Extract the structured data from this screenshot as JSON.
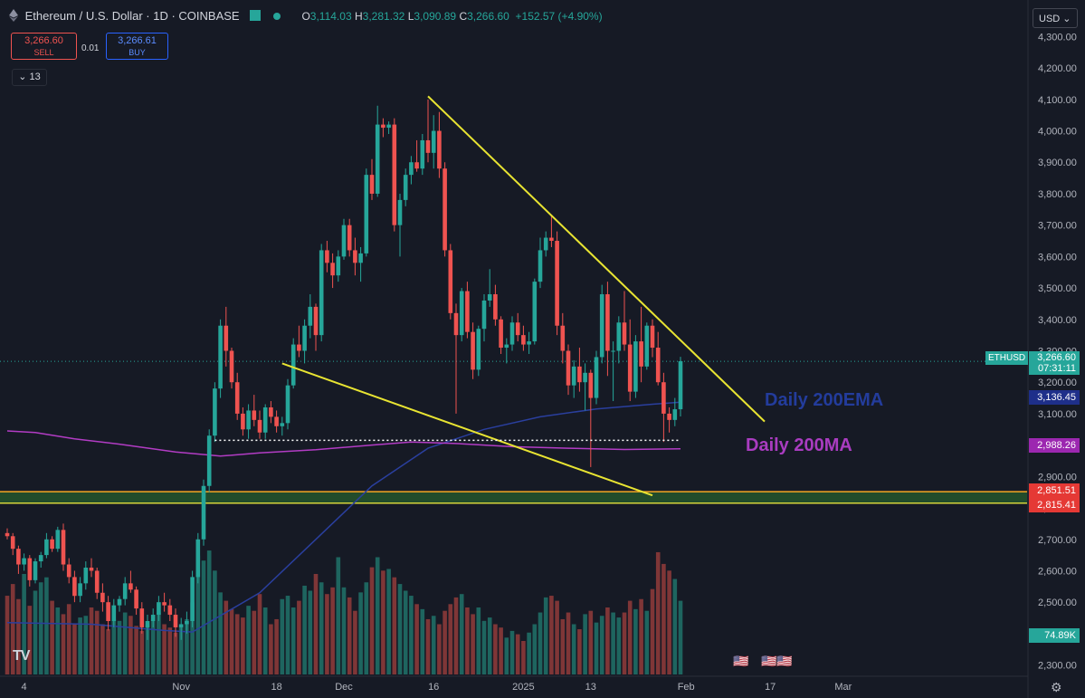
{
  "header": {
    "title": "Ethereum / U.S. Dollar · 1D · COINBASE",
    "open_label": "O",
    "open": "3,114.03",
    "high_label": "H",
    "high": "3,281.32",
    "low_label": "L",
    "low": "3,090.89",
    "close_label": "C",
    "close": "3,266.60",
    "change": "+152.57 (+4.90%)"
  },
  "trade": {
    "sell_price": "3,266.60",
    "sell_label": "SELL",
    "spread": "0.01",
    "buy_price": "3,266.61",
    "buy_label": "BUY"
  },
  "indicator_count": "13",
  "currency": "USD",
  "colors": {
    "up": "#26a69a",
    "down": "#ef5350",
    "ema": "#2a3f9e",
    "ma": "#b23cc4",
    "trend": "#e8e432",
    "support": "#f5a623",
    "support_fill": "#2e7d32"
  },
  "chart_data": {
    "type": "candlestick",
    "title": "Ethereum / U.S. Dollar · 1D · COINBASE",
    "ylim": [
      2270,
      4330
    ],
    "y_ticks": [
      2300,
      2400,
      2500,
      2600,
      2700,
      2800,
      2900,
      3000,
      3100,
      3200,
      3300,
      3400,
      3500,
      3600,
      3700,
      3800,
      3900,
      4000,
      4100,
      4200,
      4300
    ],
    "x_labels": [
      "4",
      "Nov",
      "18",
      "Dec",
      "16",
      "2025",
      "13",
      "Feb",
      "17",
      "Mar"
    ],
    "x_label_days": [
      3,
      31,
      48,
      60,
      76,
      92,
      104,
      121,
      136,
      149
    ],
    "candles": [
      [
        0,
        2720,
        2735,
        2700,
        2710
      ],
      [
        1,
        2710,
        2720,
        2650,
        2670
      ],
      [
        2,
        2670,
        2680,
        2590,
        2620
      ],
      [
        3,
        2620,
        2655,
        2600,
        2640
      ],
      [
        4,
        2640,
        2650,
        2550,
        2570
      ],
      [
        5,
        2570,
        2640,
        2560,
        2630
      ],
      [
        6,
        2630,
        2660,
        2610,
        2650
      ],
      [
        7,
        2650,
        2720,
        2640,
        2700
      ],
      [
        8,
        2700,
        2710,
        2660,
        2670
      ],
      [
        9,
        2670,
        2740,
        2660,
        2730
      ],
      [
        10,
        2730,
        2750,
        2600,
        2620
      ],
      [
        11,
        2620,
        2640,
        2560,
        2580
      ],
      [
        12,
        2580,
        2600,
        2500,
        2520
      ],
      [
        13,
        2520,
        2580,
        2500,
        2560
      ],
      [
        14,
        2560,
        2630,
        2540,
        2610
      ],
      [
        15,
        2610,
        2640,
        2580,
        2600
      ],
      [
        16,
        2600,
        2610,
        2510,
        2530
      ],
      [
        17,
        2530,
        2560,
        2470,
        2500
      ],
      [
        18,
        2500,
        2520,
        2410,
        2440
      ],
      [
        19,
        2440,
        2510,
        2420,
        2490
      ],
      [
        20,
        2490,
        2520,
        2470,
        2510
      ],
      [
        21,
        2510,
        2580,
        2490,
        2560
      ],
      [
        22,
        2560,
        2600,
        2530,
        2540
      ],
      [
        23,
        2540,
        2550,
        2460,
        2480
      ],
      [
        24,
        2480,
        2500,
        2400,
        2420
      ],
      [
        25,
        2420,
        2460,
        2380,
        2440
      ],
      [
        26,
        2440,
        2480,
        2420,
        2460
      ],
      [
        27,
        2460,
        2520,
        2440,
        2500
      ],
      [
        28,
        2500,
        2530,
        2470,
        2490
      ],
      [
        29,
        2490,
        2510,
        2440,
        2460
      ],
      [
        30,
        2460,
        2480,
        2390,
        2420
      ],
      [
        31,
        2420,
        2450,
        2380,
        2430
      ],
      [
        32,
        2430,
        2470,
        2400,
        2440
      ],
      [
        33,
        2440,
        2600,
        2420,
        2580
      ],
      [
        34,
        2580,
        2720,
        2560,
        2700
      ],
      [
        35,
        2700,
        2890,
        2680,
        2870
      ],
      [
        36,
        2870,
        3050,
        2850,
        3030
      ],
      [
        37,
        3030,
        3200,
        3010,
        3180
      ],
      [
        38,
        3180,
        3400,
        3150,
        3380
      ],
      [
        39,
        3380,
        3440,
        3250,
        3300
      ],
      [
        40,
        3300,
        3310,
        3180,
        3200
      ],
      [
        41,
        3200,
        3230,
        3080,
        3100
      ],
      [
        42,
        3100,
        3120,
        3030,
        3050
      ],
      [
        43,
        3050,
        3130,
        3020,
        3110
      ],
      [
        44,
        3110,
        3160,
        3060,
        3080
      ],
      [
        45,
        3080,
        3110,
        3020,
        3040
      ],
      [
        46,
        3040,
        3130,
        3020,
        3120
      ],
      [
        47,
        3120,
        3140,
        3070,
        3090
      ],
      [
        48,
        3090,
        3110,
        3040,
        3060
      ],
      [
        49,
        3060,
        3090,
        3030,
        3070
      ],
      [
        50,
        3070,
        3210,
        3050,
        3190
      ],
      [
        51,
        3190,
        3340,
        3180,
        3320
      ],
      [
        52,
        3320,
        3380,
        3280,
        3300
      ],
      [
        53,
        3300,
        3400,
        3260,
        3380
      ],
      [
        54,
        3380,
        3480,
        3340,
        3440
      ],
      [
        55,
        3440,
        3450,
        3300,
        3350
      ],
      [
        56,
        3350,
        3640,
        3330,
        3620
      ],
      [
        57,
        3620,
        3650,
        3550,
        3580
      ],
      [
        58,
        3580,
        3610,
        3500,
        3540
      ],
      [
        59,
        3540,
        3620,
        3520,
        3600
      ],
      [
        60,
        3600,
        3720,
        3590,
        3700
      ],
      [
        61,
        3700,
        3720,
        3600,
        3620
      ],
      [
        62,
        3620,
        3660,
        3540,
        3580
      ],
      [
        63,
        3580,
        3630,
        3520,
        3610
      ],
      [
        64,
        3610,
        3880,
        3600,
        3860
      ],
      [
        65,
        3860,
        3910,
        3780,
        3800
      ],
      [
        66,
        3800,
        4080,
        3790,
        4020
      ],
      [
        67,
        4020,
        4040,
        3980,
        4010
      ],
      [
        68,
        4010,
        4030,
        3990,
        4020
      ],
      [
        69,
        4020,
        4040,
        3680,
        3700
      ],
      [
        70,
        3700,
        3800,
        3600,
        3780
      ],
      [
        71,
        3780,
        3880,
        3760,
        3860
      ],
      [
        72,
        3860,
        3920,
        3830,
        3900
      ],
      [
        73,
        3900,
        3970,
        3870,
        3880
      ],
      [
        74,
        3880,
        3990,
        3860,
        3970
      ],
      [
        75,
        3970,
        4100,
        3900,
        3930
      ],
      [
        76,
        3930,
        4050,
        3880,
        4000
      ],
      [
        77,
        4000,
        4060,
        3850,
        3880
      ],
      [
        78,
        3880,
        3900,
        3600,
        3620
      ],
      [
        79,
        3620,
        3640,
        3400,
        3420
      ],
      [
        80,
        3420,
        3450,
        3100,
        3350
      ],
      [
        81,
        3350,
        3500,
        3330,
        3490
      ],
      [
        82,
        3490,
        3520,
        3340,
        3360
      ],
      [
        83,
        3360,
        3390,
        3210,
        3240
      ],
      [
        84,
        3240,
        3380,
        3220,
        3370
      ],
      [
        85,
        3370,
        3480,
        3330,
        3460
      ],
      [
        86,
        3460,
        3560,
        3440,
        3480
      ],
      [
        87,
        3480,
        3510,
        3380,
        3400
      ],
      [
        88,
        3400,
        3410,
        3290,
        3310
      ],
      [
        89,
        3310,
        3340,
        3260,
        3320
      ],
      [
        90,
        3320,
        3410,
        3300,
        3390
      ],
      [
        91,
        3390,
        3420,
        3330,
        3350
      ],
      [
        92,
        3350,
        3380,
        3300,
        3320
      ],
      [
        93,
        3320,
        3360,
        3290,
        3330
      ],
      [
        94,
        3330,
        3530,
        3320,
        3520
      ],
      [
        95,
        3520,
        3660,
        3500,
        3620
      ],
      [
        96,
        3620,
        3680,
        3600,
        3660
      ],
      [
        97,
        3660,
        3730,
        3630,
        3650
      ],
      [
        98,
        3650,
        3680,
        3350,
        3380
      ],
      [
        99,
        3380,
        3420,
        3260,
        3300
      ],
      [
        100,
        3300,
        3320,
        3160,
        3190
      ],
      [
        101,
        3190,
        3270,
        3150,
        3250
      ],
      [
        102,
        3250,
        3310,
        3170,
        3200
      ],
      [
        103,
        3200,
        3260,
        3110,
        3230
      ],
      [
        104,
        3230,
        3240,
        2930,
        3150
      ],
      [
        105,
        3150,
        3300,
        3130,
        3280
      ],
      [
        106,
        3280,
        3510,
        3260,
        3480
      ],
      [
        107,
        3480,
        3520,
        3220,
        3300
      ],
      [
        108,
        3300,
        3330,
        3140,
        3300
      ],
      [
        109,
        3300,
        3410,
        3260,
        3390
      ],
      [
        110,
        3390,
        3490,
        3300,
        3320
      ],
      [
        111,
        3320,
        3400,
        3140,
        3170
      ],
      [
        112,
        3170,
        3350,
        3150,
        3330
      ],
      [
        113,
        3330,
        3440,
        3200,
        3250
      ],
      [
        114,
        3250,
        3390,
        3240,
        3380
      ],
      [
        115,
        3380,
        3400,
        3280,
        3310
      ],
      [
        116,
        3310,
        3360,
        3190,
        3200
      ],
      [
        117,
        3200,
        3230,
        3010,
        3100
      ],
      [
        118,
        3100,
        3120,
        3040,
        3080
      ],
      [
        119,
        3080,
        3150,
        3060,
        3114
      ],
      [
        120,
        3114,
        3281,
        3091,
        3267
      ]
    ],
    "volume": [
      47,
      54,
      45,
      60,
      41,
      50,
      55,
      58,
      44,
      40,
      36,
      42,
      30,
      34,
      35,
      40,
      38,
      30,
      27,
      33,
      32,
      37,
      35,
      29,
      26,
      30,
      33,
      37,
      30,
      28,
      25,
      29,
      33,
      43,
      71,
      68,
      74,
      62,
      49,
      44,
      39,
      36,
      34,
      41,
      38,
      48,
      40,
      30,
      33,
      45,
      47,
      40,
      44,
      53,
      50,
      60,
      55,
      48,
      52,
      70,
      52,
      46,
      38,
      49,
      55,
      64,
      70,
      62,
      63,
      58,
      54,
      50,
      47,
      42,
      39,
      33,
      35,
      30,
      38,
      42,
      46,
      48,
      40,
      36,
      40,
      32,
      34,
      30,
      28,
      22,
      26,
      24,
      20,
      25,
      30,
      37,
      46,
      47,
      44,
      33,
      37,
      30,
      27,
      36,
      38,
      31,
      35,
      40,
      37,
      34,
      37,
      44,
      39,
      45,
      38,
      51,
      73,
      66,
      62,
      57,
      44
    ],
    "ema_200": [
      [
        0,
        2435
      ],
      [
        15,
        2430
      ],
      [
        28,
        2410
      ],
      [
        33,
        2405
      ],
      [
        45,
        2530
      ],
      [
        55,
        2700
      ],
      [
        65,
        2870
      ],
      [
        75,
        2990
      ],
      [
        85,
        3050
      ],
      [
        95,
        3090
      ],
      [
        105,
        3115
      ],
      [
        115,
        3130
      ],
      [
        120,
        3136.45
      ]
    ],
    "ma_200": [
      [
        0,
        3045
      ],
      [
        5,
        3040
      ],
      [
        12,
        3020
      ],
      [
        20,
        3003
      ],
      [
        30,
        2978
      ],
      [
        38,
        2965
      ],
      [
        45,
        2975
      ],
      [
        55,
        2985
      ],
      [
        65,
        3000
      ],
      [
        72,
        3010
      ],
      [
        80,
        3005
      ],
      [
        90,
        2995
      ],
      [
        100,
        2990
      ],
      [
        110,
        2986
      ],
      [
        120,
        2988.26
      ]
    ],
    "trendlines": [
      {
        "name": "falling-resistance",
        "points": [
          [
            75,
            4110
          ],
          [
            135,
            3075
          ]
        ]
      },
      {
        "name": "falling-support",
        "points": [
          [
            49,
            3260
          ],
          [
            115,
            2840
          ]
        ]
      },
      {
        "name": "dotted-support",
        "points": [
          [
            37,
            3015
          ],
          [
            120,
            3015
          ]
        ]
      }
    ],
    "support_zone": {
      "low": 2815.41,
      "high": 2851.51
    },
    "last_price_line": 3266.6,
    "annotations": {
      "ema_label": "Daily 200EMA",
      "ma_label": "Daily 200MA"
    },
    "price_tags": {
      "symbol": "ETHUSD",
      "last": "3,266.60",
      "countdown": "07:31:11",
      "ema": "3,136.45",
      "ma": "2,988.26",
      "support_high": "2,851.51",
      "support_low": "2,815.41",
      "volume": "74.89K"
    }
  }
}
